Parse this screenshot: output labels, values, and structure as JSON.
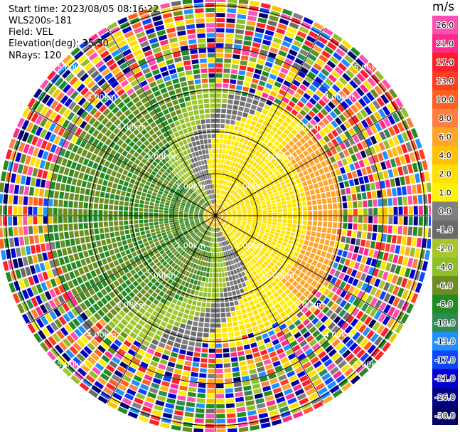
{
  "info": {
    "start_time": "Start time: 2023/08/05 08:16:22",
    "station": "WLS200s-181",
    "field": "Field: VEL",
    "elevation": "Elevation(deg): 35.30",
    "nrays": "NRays: 120"
  },
  "colorbar": {
    "unit": "m/s",
    "labels": [
      "26.0",
      "21.0",
      "17.0",
      "13.0",
      "10.0",
      "8.0",
      "6.0",
      "4.0",
      "2.0",
      "1.0",
      "0.0",
      "-1.0",
      "-2.0",
      "-4.0",
      "-6.0",
      "-8.0",
      "-10.0",
      "-13.0",
      "-17.0",
      "-21.0",
      "-26.0",
      "-30.0"
    ],
    "colors": [
      "#ff4fb2",
      "#ff2a8a",
      "#ff1f2a",
      "#ff3f1f",
      "#ff5f1f",
      "#ff7f3f",
      "#ffa62a",
      "#ffc000",
      "#ffdf00",
      "#fff200",
      "#7f7f7f",
      "#6b6b6b",
      "#a6c82a",
      "#8fbf2a",
      "#6b8f1f",
      "#228b22",
      "#2e8b57",
      "#1e90ff",
      "#0a47ff",
      "#0000d0",
      "#00008b",
      "#000060"
    ]
  },
  "chart_data": {
    "type": "ppi",
    "field": "VEL",
    "units": "m/s",
    "elevation_deg": 35.3,
    "n_rays": 120,
    "range_rings": [
      "1.00km",
      "2.00km",
      "3.00km",
      "4.00km",
      "5.00km"
    ],
    "range_ring_km": [
      1,
      2,
      3,
      4,
      5
    ],
    "spokes_deg": [
      0,
      30,
      60,
      90,
      120,
      150,
      180,
      210,
      240,
      270,
      300,
      330
    ],
    "velocity_pattern": [
      {
        "region": "east (0-2.8 km)",
        "velocity_range_ms": [
          2.0,
          6.0
        ],
        "dominant": "yellow/orange (receding)"
      },
      {
        "region": "west (0-3.5 km)",
        "velocity_range_ms": [
          -8.0,
          -2.0
        ],
        "dominant": "green (approaching)"
      },
      {
        "region": "north & south zero-isodop band",
        "velocity_range_ms": [
          -1.0,
          1.0
        ],
        "dominant": "grey"
      },
      {
        "region": "beyond ~3.5 km",
        "velocity_range_ms": [
          -30.0,
          26.0
        ],
        "dominant": "noisy / random"
      }
    ]
  }
}
